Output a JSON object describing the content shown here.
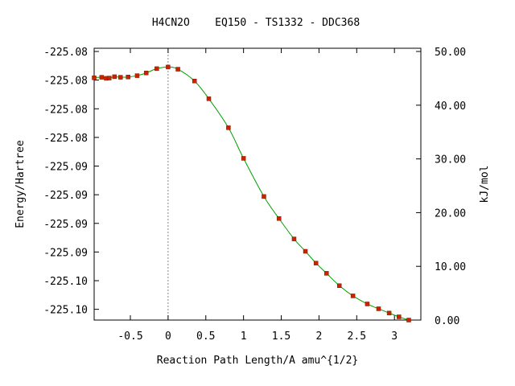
{
  "chart_data": {
    "type": "line",
    "title": "H4CN2O    EQ150 - TS1332 - DDC368",
    "xlabel": "Reaction Path Length/A amu^{1/2}",
    "ylabel": "Energy/Hartree",
    "y2label": "kJ/mol",
    "xlim": [
      -0.98,
      3.35
    ],
    "ylim": [
      0.0,
      50.6
    ],
    "x_ticks": [
      -0.5,
      0,
      0.5,
      1,
      1.5,
      2,
      2.5,
      3
    ],
    "x_tick_labels": [
      "-0.5",
      "0",
      "0.5",
      "1",
      "1.5",
      "2",
      "2.5",
      "3"
    ],
    "y_left_tick_kj": [
      2.0,
      7.33,
      12.67,
      18.0,
      23.33,
      28.67,
      34.0,
      39.33,
      44.67,
      50.0
    ],
    "y_left_tick_labels": [
      "-225.10",
      "-225.10",
      "-225.09",
      "-225.09",
      "-225.09",
      "-225.09",
      "-225.08",
      "-225.08",
      "-225.08",
      "-225.08"
    ],
    "y_right_ticks": [
      0,
      10,
      20,
      30,
      40,
      50
    ],
    "y_right_tick_labels": [
      "0.00",
      "10.00",
      "20.00",
      "30.00",
      "40.00",
      "50.00"
    ],
    "ts_marker_x": 0.0,
    "grid": false,
    "series": [
      {
        "line_color": "#00a000",
        "marker_color": "#cc2200",
        "x": [
          -0.98,
          -0.88,
          -0.82,
          -0.78,
          -0.71,
          -0.63,
          -0.53,
          -0.41,
          -0.29,
          -0.15,
          0.0,
          0.13,
          0.35,
          0.54,
          0.8,
          1.0,
          1.27,
          1.47,
          1.67,
          1.82,
          1.96,
          2.1,
          2.27,
          2.45,
          2.64,
          2.79,
          2.93,
          3.06,
          3.19
        ],
        "y": [
          45.1,
          45.2,
          45.0,
          45.05,
          45.3,
          45.2,
          45.25,
          45.5,
          46.0,
          46.8,
          47.1,
          46.7,
          44.5,
          41.2,
          35.8,
          30.1,
          23.0,
          18.9,
          15.1,
          12.8,
          10.6,
          8.7,
          6.4,
          4.5,
          3.0,
          2.1,
          1.3,
          0.6,
          0.0
        ]
      }
    ]
  }
}
